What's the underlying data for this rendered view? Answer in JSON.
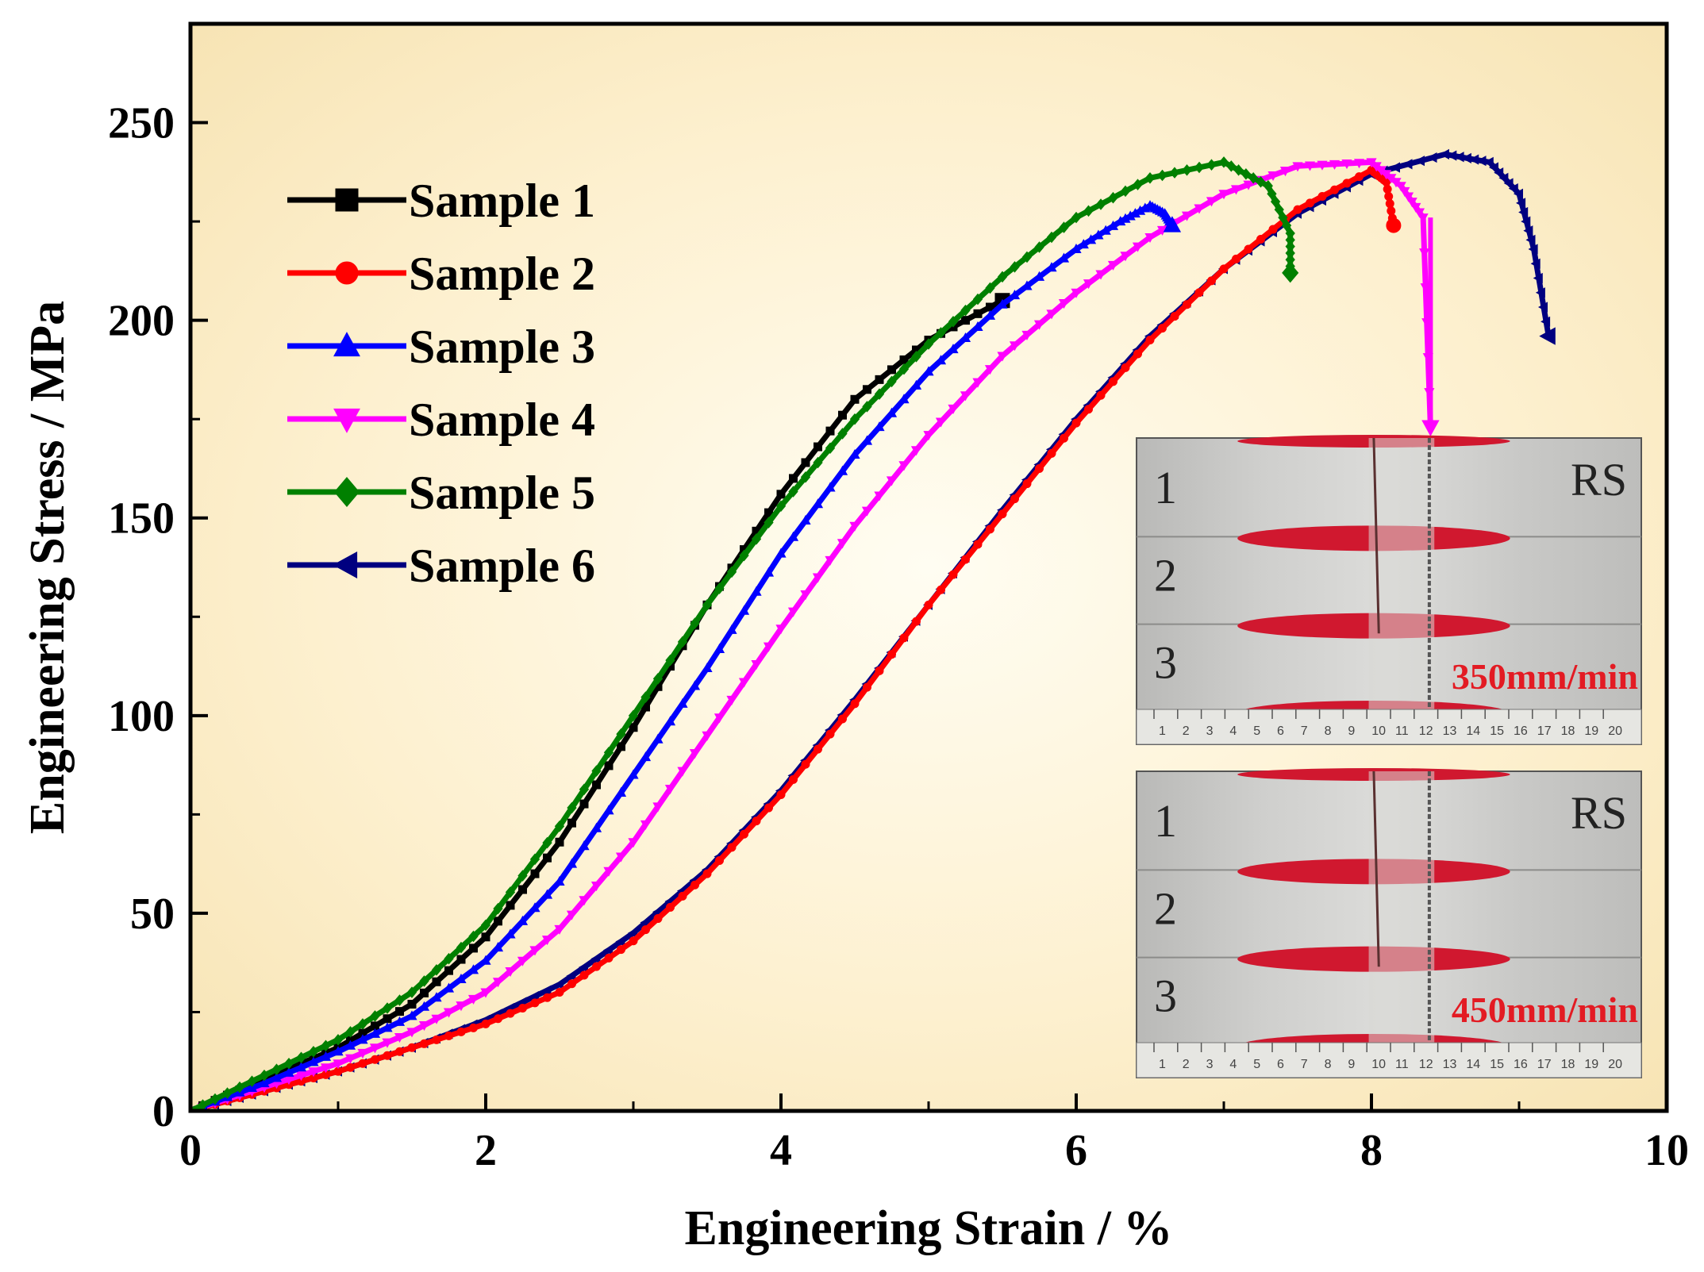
{
  "chart_data": {
    "type": "line",
    "title": "",
    "xlabel": "Engineering Strain / %",
    "ylabel": "Engineering Stress / MPa",
    "xlim": [
      0,
      10
    ],
    "ylim": [
      0,
      275
    ],
    "xticks": [
      0,
      2,
      4,
      6,
      8,
      10
    ],
    "yticks": [
      0,
      50,
      100,
      150,
      200,
      250
    ],
    "legend_position": "top-left",
    "series": [
      {
        "name": "Sample 1",
        "color": "#000000",
        "marker": "square",
        "x": [
          0,
          0.5,
          1.0,
          1.5,
          2.0,
          2.5,
          3.0,
          3.5,
          4.0,
          4.5,
          5.0,
          5.5
        ],
        "y": [
          0,
          8,
          16,
          27,
          44,
          68,
          97,
          128,
          156,
          180,
          195,
          205
        ]
      },
      {
        "name": "Sample 2",
        "color": "#ff0000",
        "marker": "circle",
        "x": [
          0,
          0.5,
          1.0,
          1.5,
          2.0,
          2.5,
          3.0,
          3.5,
          4.0,
          4.5,
          5.0,
          5.5,
          6.0,
          6.5,
          7.0,
          7.5,
          8.0,
          8.1,
          8.15
        ],
        "y": [
          0,
          5,
          10,
          16,
          22,
          30,
          43,
          60,
          80,
          103,
          128,
          151,
          174,
          195,
          213,
          228,
          238,
          235,
          224
        ]
      },
      {
        "name": "Sample 3",
        "color": "#0000ff",
        "marker": "triangle-up",
        "x": [
          0,
          0.5,
          1.0,
          1.5,
          2.0,
          2.5,
          3.0,
          3.5,
          4.0,
          4.5,
          5.0,
          5.5,
          6.0,
          6.3,
          6.5,
          6.6,
          6.65
        ],
        "y": [
          0,
          7,
          15,
          24,
          38,
          58,
          85,
          112,
          141,
          166,
          187,
          204,
          218,
          225,
          229,
          227,
          224
        ]
      },
      {
        "name": "Sample 4",
        "color": "#ff00ff",
        "marker": "triangle-down",
        "x": [
          0,
          0.5,
          1.0,
          1.5,
          2.0,
          2.5,
          3.0,
          3.5,
          4.0,
          4.5,
          5.0,
          5.5,
          6.0,
          6.5,
          7.0,
          7.5,
          8.0,
          8.2,
          8.35,
          8.4
        ],
        "y": [
          0,
          6,
          12,
          20,
          30,
          46,
          68,
          95,
          122,
          148,
          171,
          191,
          207,
          221,
          232,
          239,
          240,
          234,
          226,
          173
        ]
      },
      {
        "name": "Sample 5",
        "color": "#008000",
        "marker": "diamond",
        "x": [
          0,
          0.5,
          1.0,
          1.5,
          2.0,
          2.5,
          3.0,
          3.5,
          4.0,
          4.5,
          5.0,
          5.5,
          6.0,
          6.5,
          7.0,
          7.3,
          7.45,
          7.45
        ],
        "y": [
          0,
          9,
          18,
          30,
          47,
          72,
          100,
          128,
          153,
          175,
          194,
          211,
          226,
          236,
          240,
          234,
          222,
          212
        ]
      },
      {
        "name": "Sample 6",
        "color": "#000080",
        "marker": "triangle-left",
        "x": [
          0,
          0.5,
          1.0,
          1.5,
          2.0,
          2.5,
          3.0,
          3.5,
          4.0,
          4.5,
          5.0,
          5.5,
          6.0,
          6.5,
          7.0,
          7.5,
          8.0,
          8.5,
          8.8,
          9.0,
          9.1,
          9.2
        ],
        "y": [
          0,
          5,
          10,
          16,
          23,
          32,
          45,
          61,
          81,
          104,
          128,
          152,
          175,
          196,
          213,
          227,
          237,
          242,
          240,
          232,
          218,
          196
        ]
      }
    ],
    "annotations": [
      {
        "type": "arrow",
        "from_series": "Sample 4",
        "x": 8.4,
        "y_from": 226,
        "y_to": 173,
        "label": ""
      }
    ],
    "insets": [
      {
        "name": "specimen-photo-350",
        "side_label": "RS",
        "specimen_labels": [
          "1",
          "2",
          "3"
        ],
        "speed_label": "350mm/min",
        "ruler": [
          "1",
          "2",
          "3",
          "4",
          "5",
          "6",
          "7",
          "8",
          "9",
          "10",
          "11",
          "12",
          "13",
          "14",
          "15",
          "16",
          "17",
          "18",
          "19",
          "20"
        ]
      },
      {
        "name": "specimen-photo-450",
        "side_label": "RS",
        "specimen_labels": [
          "1",
          "2",
          "3"
        ],
        "speed_label": "450mm/min",
        "ruler": [
          "1",
          "2",
          "3",
          "4",
          "5",
          "6",
          "7",
          "8",
          "9",
          "10",
          "11",
          "12",
          "13",
          "14",
          "15",
          "16",
          "17",
          "18",
          "19",
          "20"
        ]
      }
    ]
  }
}
